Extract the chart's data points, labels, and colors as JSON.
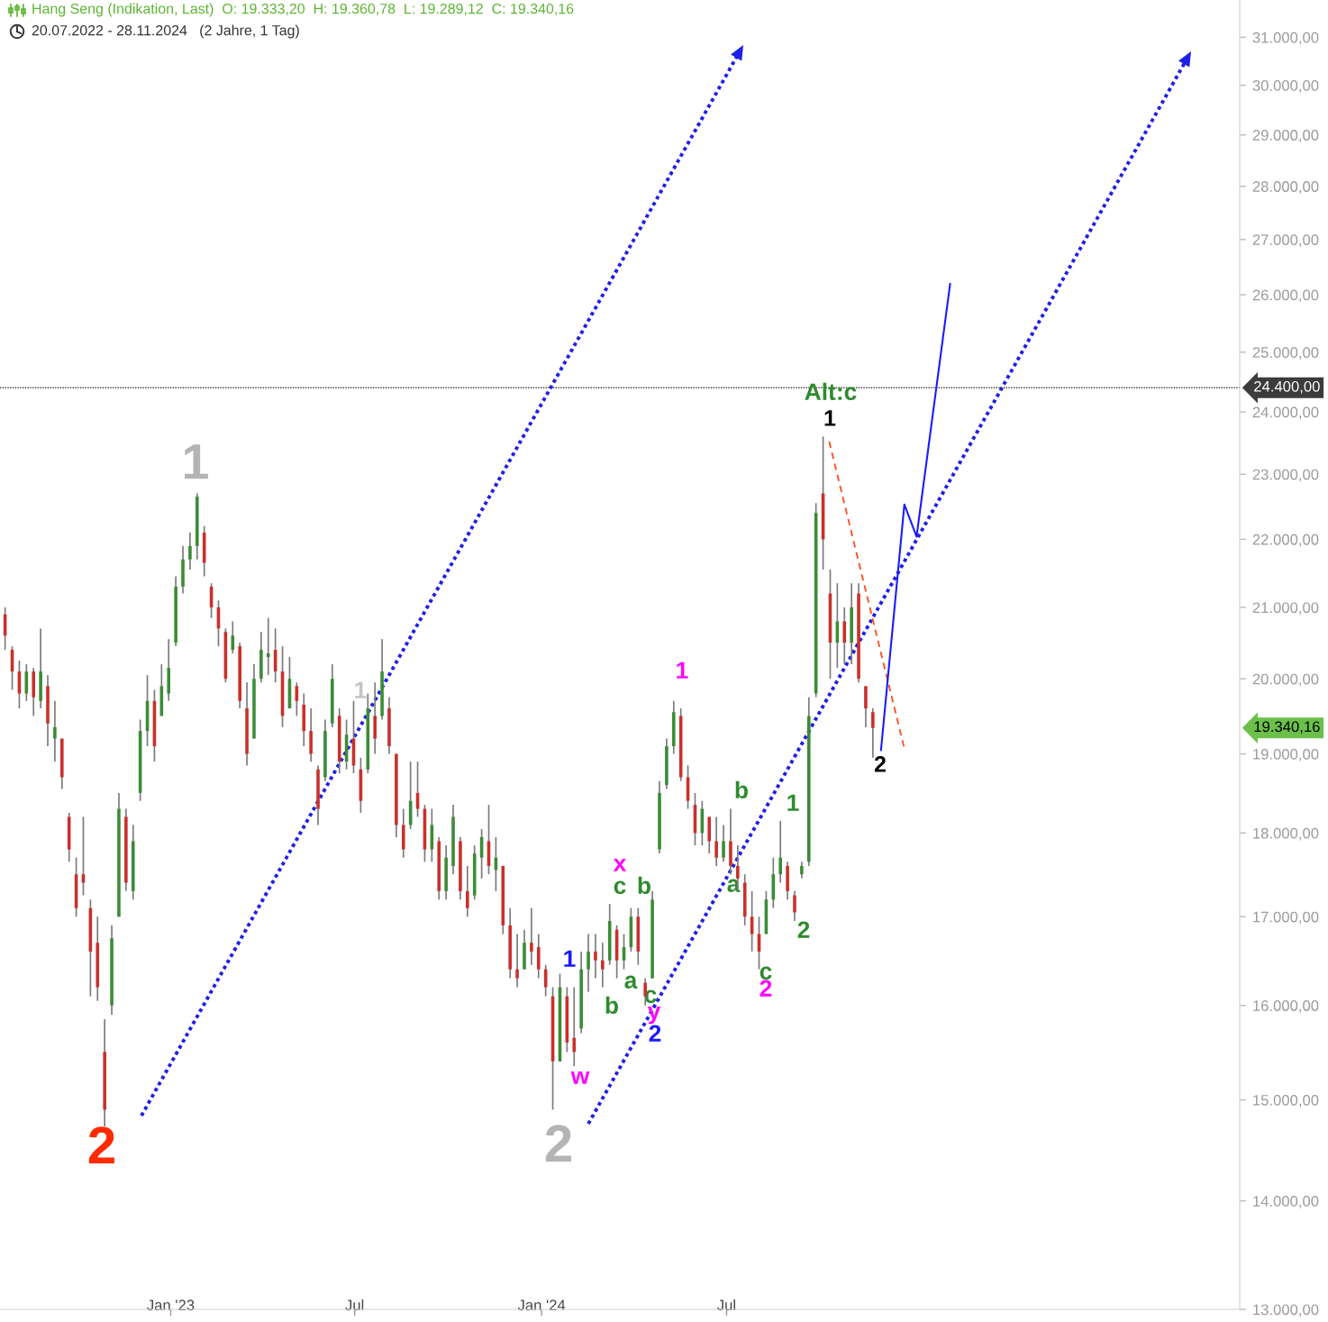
{
  "chart_data": {
    "type": "candlestick",
    "title": "Hang Seng (Indikation, Last)  O: 19.333,20  H: 19.360,78  L: 19.289,12  C: 19.340,16",
    "subtitle": "20.07.2022 - 28.11.2024   (2 Jahre, 1 Tag)",
    "x": [
      "2022-07-22",
      "2022-07-29",
      "2022-08-05",
      "2022-08-12",
      "2022-08-19",
      "2022-08-26",
      "2022-09-02",
      "2022-09-09",
      "2022-09-16",
      "2022-09-23",
      "2022-09-30",
      "2022-10-07",
      "2022-10-14",
      "2022-10-21",
      "2022-10-28",
      "2022-11-04",
      "2022-11-11",
      "2022-11-18",
      "2022-11-25",
      "2022-12-02",
      "2022-12-09",
      "2022-12-16",
      "2022-12-23",
      "2022-12-30",
      "2023-01-06",
      "2023-01-13",
      "2023-01-20",
      "2023-01-27",
      "2023-02-03",
      "2023-02-10",
      "2023-02-17",
      "2023-02-24",
      "2023-03-03",
      "2023-03-10",
      "2023-03-17",
      "2023-03-24",
      "2023-03-31",
      "2023-04-07",
      "2023-04-14",
      "2023-04-21",
      "2023-04-28",
      "2023-05-05",
      "2023-05-12",
      "2023-05-19",
      "2023-05-26",
      "2023-06-02",
      "2023-06-09",
      "2023-06-16",
      "2023-06-23",
      "2023-06-30",
      "2023-07-07",
      "2023-07-14",
      "2023-07-21",
      "2023-07-28",
      "2023-08-04",
      "2023-08-11",
      "2023-08-18",
      "2023-08-25",
      "2023-09-01",
      "2023-09-08",
      "2023-09-15",
      "2023-09-22",
      "2023-09-29",
      "2023-10-06",
      "2023-10-13",
      "2023-10-20",
      "2023-10-27",
      "2023-11-03",
      "2023-11-10",
      "2023-11-17",
      "2023-11-24",
      "2023-12-01",
      "2023-12-08",
      "2023-12-15",
      "2023-12-22",
      "2023-12-29",
      "2024-01-05",
      "2024-01-12",
      "2024-01-19",
      "2024-01-26",
      "2024-02-02",
      "2024-02-09",
      "2024-02-16",
      "2024-02-23",
      "2024-03-01",
      "2024-03-08",
      "2024-03-15",
      "2024-03-22",
      "2024-03-29",
      "2024-04-05",
      "2024-04-12",
      "2024-04-19",
      "2024-04-26",
      "2024-05-03",
      "2024-05-10",
      "2024-05-17",
      "2024-05-24",
      "2024-05-31",
      "2024-06-07",
      "2024-06-14",
      "2024-06-21",
      "2024-06-28",
      "2024-07-05",
      "2024-07-12",
      "2024-07-19",
      "2024-07-26",
      "2024-08-02",
      "2024-08-09",
      "2024-08-16",
      "2024-08-23",
      "2024-08-30",
      "2024-09-06",
      "2024-09-13",
      "2024-09-20",
      "2024-09-27",
      "2024-10-04",
      "2024-10-11",
      "2024-10-18",
      "2024-10-25",
      "2024-11-01",
      "2024-11-08",
      "2024-11-15",
      "2024-11-22"
    ],
    "ohlc": [
      [
        20900,
        21000,
        20400,
        20600
      ],
      [
        20400,
        20450,
        19850,
        20100
      ],
      [
        20100,
        20250,
        19600,
        19800
      ],
      [
        19800,
        20200,
        19700,
        20100
      ],
      [
        20100,
        20150,
        19500,
        19750
      ],
      [
        19700,
        20700,
        19600,
        20100
      ],
      [
        19900,
        20050,
        19100,
        19400
      ],
      [
        19200,
        19700,
        18900,
        19350
      ],
      [
        19200,
        19200,
        18550,
        18700
      ],
      [
        18200,
        18250,
        17650,
        17800
      ],
      [
        17500,
        17700,
        17000,
        17100
      ],
      [
        17500,
        18200,
        17250,
        17400
      ],
      [
        17100,
        17200,
        16100,
        16600
      ],
      [
        16700,
        17000,
        16050,
        16200
      ],
      [
        15500,
        15850,
        14730,
        14900
      ],
      [
        16000,
        16900,
        15900,
        16750
      ],
      [
        17000,
        18500,
        17000,
        18300
      ],
      [
        18200,
        18300,
        17300,
        17400
      ],
      [
        17300,
        18100,
        17200,
        17900
      ],
      [
        18500,
        19450,
        18400,
        19300
      ],
      [
        19300,
        20050,
        19100,
        19700
      ],
      [
        19700,
        19850,
        18900,
        19100
      ],
      [
        19500,
        20200,
        19500,
        19900
      ],
      [
        19800,
        20550,
        19700,
        20150
      ],
      [
        20500,
        21450,
        20450,
        21300
      ],
      [
        21300,
        21900,
        21200,
        21700
      ],
      [
        21700,
        22100,
        21550,
        21900
      ],
      [
        21900,
        22700,
        21700,
        22650
      ],
      [
        22100,
        22200,
        21450,
        21650
      ],
      [
        21300,
        21350,
        20850,
        21000
      ],
      [
        21000,
        21100,
        20450,
        20700
      ],
      [
        20650,
        20700,
        19950,
        20000
      ],
      [
        20400,
        20800,
        20350,
        20600
      ],
      [
        20450,
        20500,
        19600,
        19700
      ],
      [
        19600,
        19950,
        18850,
        19000
      ],
      [
        19200,
        20200,
        19200,
        20000
      ],
      [
        20000,
        20650,
        19950,
        20400
      ],
      [
        20300,
        20850,
        20050,
        20350
      ],
      [
        20400,
        20700,
        19950,
        20100
      ],
      [
        20100,
        20450,
        19350,
        19500
      ],
      [
        19600,
        20300,
        19600,
        20000
      ],
      [
        19900,
        19950,
        19500,
        19700
      ],
      [
        19650,
        19800,
        19100,
        19300
      ],
      [
        19300,
        19600,
        18900,
        19000
      ],
      [
        18800,
        18850,
        18100,
        18300
      ],
      [
        18700,
        19450,
        18650,
        19300
      ],
      [
        19400,
        20200,
        19350,
        20000
      ],
      [
        19500,
        19600,
        18750,
        18900
      ],
      [
        18900,
        19450,
        18800,
        19250
      ],
      [
        19200,
        19700,
        18750,
        18850
      ],
      [
        18800,
        18950,
        18250,
        18400
      ],
      [
        18800,
        19800,
        18750,
        19600
      ],
      [
        19500,
        19950,
        19000,
        19200
      ],
      [
        19500,
        20550,
        19450,
        20100
      ],
      [
        19600,
        19750,
        19000,
        19100
      ],
      [
        19000,
        19000,
        17950,
        18100
      ],
      [
        18100,
        18300,
        17700,
        17800
      ],
      [
        18100,
        18900,
        18050,
        18400
      ],
      [
        18500,
        18900,
        18200,
        18300
      ],
      [
        18300,
        18350,
        17650,
        17800
      ],
      [
        17800,
        18300,
        17650,
        18100
      ],
      [
        17900,
        17950,
        17200,
        17300
      ],
      [
        17300,
        17850,
        17200,
        17700
      ],
      [
        17600,
        18350,
        17500,
        18200
      ],
      [
        17900,
        17950,
        17200,
        17300
      ],
      [
        17300,
        17600,
        17000,
        17100
      ],
      [
        17250,
        17850,
        17200,
        17750
      ],
      [
        17700,
        18050,
        17450,
        17950
      ],
      [
        17900,
        18350,
        17500,
        17600
      ],
      [
        17550,
        17950,
        17300,
        17700
      ],
      [
        17600,
        17600,
        16800,
        16900
      ],
      [
        16900,
        17100,
        16300,
        16400
      ],
      [
        16400,
        16800,
        16200,
        16300
      ],
      [
        16400,
        16850,
        16400,
        16700
      ],
      [
        16700,
        17100,
        16450,
        16600
      ],
      [
        16650,
        16800,
        16300,
        16400
      ],
      [
        16400,
        16450,
        16100,
        16200
      ],
      [
        16100,
        16200,
        14900,
        15400
      ],
      [
        15400,
        16350,
        15400,
        16200
      ],
      [
        16100,
        16200,
        15500,
        15600
      ],
      [
        15650,
        16200,
        15350,
        15500
      ],
      [
        15750,
        16600,
        15700,
        16400
      ],
      [
        16400,
        16800,
        16150,
        16600
      ],
      [
        16600,
        16800,
        16300,
        16500
      ],
      [
        16500,
        16700,
        16200,
        16400
      ],
      [
        16500,
        17150,
        16450,
        16950
      ],
      [
        16850,
        16900,
        16300,
        16500
      ],
      [
        16500,
        16800,
        16400,
        16650
      ],
      [
        16650,
        17100,
        16600,
        17000
      ],
      [
        17000,
        17100,
        16450,
        16600
      ],
      [
        16250,
        16300,
        16000,
        16100
      ],
      [
        16300,
        17300,
        16300,
        17200
      ],
      [
        17800,
        18650,
        17750,
        18500
      ],
      [
        18600,
        19200,
        18550,
        19100
      ],
      [
        19100,
        19700,
        19000,
        19550
      ],
      [
        19500,
        19600,
        18650,
        18700
      ],
      [
        18700,
        18850,
        18300,
        18400
      ],
      [
        18350,
        18500,
        17850,
        18000
      ],
      [
        18000,
        18400,
        17850,
        18300
      ],
      [
        18200,
        18200,
        17750,
        17900
      ],
      [
        17900,
        18200,
        17600,
        17700
      ],
      [
        17700,
        18100,
        17650,
        17900
      ],
      [
        17900,
        18300,
        17500,
        17600
      ],
      [
        17600,
        17850,
        17300,
        17450
      ],
      [
        17400,
        17500,
        16900,
        17000
      ],
      [
        17000,
        17300,
        16600,
        16800
      ],
      [
        16800,
        17000,
        16400,
        16600
      ],
      [
        16800,
        17300,
        16800,
        17200
      ],
      [
        17200,
        17700,
        17100,
        17500
      ],
      [
        17500,
        18150,
        17400,
        17700
      ],
      [
        17600,
        17650,
        17200,
        17300
      ],
      [
        17250,
        17300,
        16950,
        17050
      ],
      [
        17500,
        17650,
        17450,
        17600
      ],
      [
        17650,
        19750,
        17600,
        19500
      ],
      [
        19800,
        22550,
        19750,
        22400
      ],
      [
        22700,
        23600,
        21550,
        22000
      ],
      [
        21200,
        21550,
        20000,
        20500
      ],
      [
        20500,
        21350,
        20150,
        20800
      ],
      [
        20800,
        21000,
        20200,
        20500
      ],
      [
        20500,
        21350,
        20200,
        21000
      ],
      [
        21200,
        21350,
        19950,
        20000
      ],
      [
        19900,
        19900,
        19350,
        19600
      ],
      [
        19550,
        19600,
        18950,
        19340.16
      ]
    ],
    "colors": [
      "#c8312b",
      "#c8312b",
      "#c8312b",
      "#3d8b37",
      "#c8312b",
      "#3d8b37",
      "#c8312b",
      "#3d8b37",
      "#c8312b",
      "#c8312b",
      "#c8312b",
      "#c8312b",
      "#c8312b",
      "#c8312b",
      "#c8312b",
      "#3d8b37",
      "#3d8b37",
      "#c8312b",
      "#3d8b37",
      "#3d8b37",
      "#3d8b37",
      "#c8312b",
      "#3d8b37",
      "#3d8b37",
      "#3d8b37",
      "#3d8b37",
      "#3d8b37",
      "#3d8b37",
      "#c8312b",
      "#c8312b",
      "#c8312b",
      "#c8312b",
      "#3d8b37",
      "#c8312b",
      "#c8312b",
      "#3d8b37",
      "#3d8b37",
      "#3d8b37",
      "#c8312b",
      "#c8312b",
      "#3d8b37",
      "#c8312b",
      "#c8312b",
      "#c8312b",
      "#c8312b",
      "#3d8b37",
      "#3d8b37",
      "#c8312b",
      "#3d8b37",
      "#c8312b",
      "#c8312b",
      "#3d8b37",
      "#c8312b",
      "#3d8b37",
      "#c8312b",
      "#c8312b",
      "#c8312b",
      "#3d8b37",
      "#c8312b",
      "#c8312b",
      "#3d8b37",
      "#c8312b",
      "#3d8b37",
      "#3d8b37",
      "#c8312b",
      "#c8312b",
      "#3d8b37",
      "#3d8b37",
      "#c8312b",
      "#3d8b37",
      "#c8312b",
      "#c8312b",
      "#c8312b",
      "#3d8b37",
      "#c8312b",
      "#c8312b",
      "#c8312b",
      "#c8312b",
      "#3d8b37",
      "#c8312b",
      "#c8312b",
      "#3d8b37",
      "#3d8b37",
      "#c8312b",
      "#c8312b",
      "#3d8b37",
      "#c8312b",
      "#3d8b37",
      "#3d8b37",
      "#c8312b",
      "#c8312b",
      "#3d8b37",
      "#3d8b37",
      "#3d8b37",
      "#3d8b37",
      "#c8312b",
      "#c8312b",
      "#c8312b",
      "#3d8b37",
      "#c8312b",
      "#c8312b",
      "#3d8b37",
      "#c8312b",
      "#c8312b",
      "#c8312b",
      "#c8312b",
      "#c8312b",
      "#3d8b37",
      "#3d8b37",
      "#3d8b37",
      "#c8312b",
      "#c8312b",
      "#3d8b37",
      "#3d8b37",
      "#3d8b37",
      "#c8312b",
      "#c8312b",
      "#3d8b37",
      "#c8312b",
      "#3d8b37",
      "#c8312b",
      "#c8312b",
      "#c8312b"
    ],
    "series": [
      {
        "type": "line",
        "x": [
          "2024-10-10",
          "2024-12-23"
        ],
        "values": [
          23520,
          19070
        ],
        "color": "#ff4a1a",
        "line_style": "dashed"
      },
      {
        "type": "line",
        "x": [
          "2024-11-30",
          "2024-12-23",
          "2025-01-04",
          "2025-02-06"
        ],
        "values": [
          19050,
          22530,
          22040,
          26190
        ],
        "color": "#1a1aff",
        "line_style": "solid"
      }
    ],
    "ref_lines": [
      {
        "axis": "y",
        "value": 24400,
        "label": "24.400,00",
        "color": "#3c3c3c",
        "line_style": "dotted"
      }
    ],
    "annotations": [
      "1",
      "2",
      "2",
      "1",
      "1",
      "x",
      "c",
      "b",
      "a",
      "b",
      "1",
      "w",
      "c",
      "y",
      "2",
      "b",
      "a",
      "1",
      "2",
      "c",
      "2",
      "Alt:c",
      "1",
      "2",
      "19.340,16"
    ],
    "xlim": [
      "2022-07-17",
      "2025-11-18"
    ],
    "xticks": [
      {
        "value": "2023-01-01",
        "label": "Jan '23"
      },
      {
        "value": "2023-07-01",
        "label": "Jul"
      },
      {
        "value": "2024-01-01",
        "label": "Jan '24"
      },
      {
        "value": "2024-07-01",
        "label": "Jul"
      }
    ],
    "ylim": [
      13000,
      31800
    ],
    "yticks": [
      {
        "value": 13000,
        "label": "13.000,00"
      },
      {
        "value": 14000,
        "label": "14.000,00"
      },
      {
        "value": 15000,
        "label": "15.000,00"
      },
      {
        "value": 16000,
        "label": "16.000,00"
      },
      {
        "value": 17000,
        "label": "17.000,00"
      },
      {
        "value": 18000,
        "label": "18.000,00"
      },
      {
        "value": 19000,
        "label": "19.000,00"
      },
      {
        "value": 20000,
        "label": "20.000,00"
      },
      {
        "value": 21000,
        "label": "21.000,00"
      },
      {
        "value": 22000,
        "label": "22.000,00"
      },
      {
        "value": 23000,
        "label": "23.000,00"
      },
      {
        "value": 24000,
        "label": "24.000,00"
      },
      {
        "value": 25000,
        "label": "25.000,00"
      },
      {
        "value": 26000,
        "label": "26.000,00"
      },
      {
        "value": 27000,
        "label": "27.000,00"
      },
      {
        "value": 28000,
        "label": "28.000,00"
      },
      {
        "value": 29000,
        "label": "29.000,00"
      },
      {
        "value": 30000,
        "label": "30.000,00"
      },
      {
        "value": 31000,
        "label": "31.000,00"
      }
    ],
    "log": true
  }
}
